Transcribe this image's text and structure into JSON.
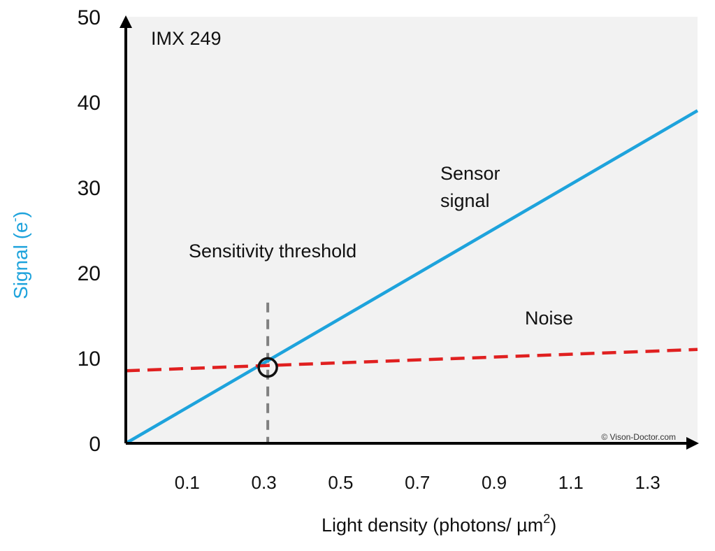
{
  "chart_data": {
    "type": "line",
    "xlabel": "Light density (photons/ µm",
    "xlabel_sup": "2",
    "xlabel_tail": ")",
    "ylabel": "Signal (e",
    "ylabel_sup": "-",
    "ylabel_tail": ")",
    "x_ticks": [
      "0.1",
      "0.3",
      "0.5",
      "0.7",
      "0.9",
      "1.1",
      "1.3"
    ],
    "y_ticks": [
      "0",
      "10",
      "20",
      "30",
      "40",
      "50"
    ],
    "xlim": [
      -0.06,
      1.43
    ],
    "ylim": [
      0,
      50
    ],
    "grid": false,
    "series": [
      {
        "name": "Sensor signal",
        "style": "solid",
        "color": "#1ea3dc",
        "x": [
          -0.06,
          1.43
        ],
        "y": [
          0,
          39
        ]
      },
      {
        "name": "Noise",
        "style": "dashed",
        "color": "#e02020",
        "x": [
          -0.06,
          1.43
        ],
        "y": [
          8.5,
          11
        ]
      }
    ],
    "threshold": {
      "x": 0.31,
      "y": 8.9,
      "ymax": 16.5,
      "color": "#808080"
    },
    "annotations": {
      "sensor": "IMX 249",
      "threshold_label": "Sensitivity threshold",
      "signal_label_1": "Sensor",
      "signal_label_2": "signal",
      "noise_label": "Noise",
      "copyright": "© Vison-Doctor.com"
    },
    "colors": {
      "plot_background": "#f2f2f2",
      "axis": "#000000",
      "ylabel": "#1ea3dc"
    }
  }
}
